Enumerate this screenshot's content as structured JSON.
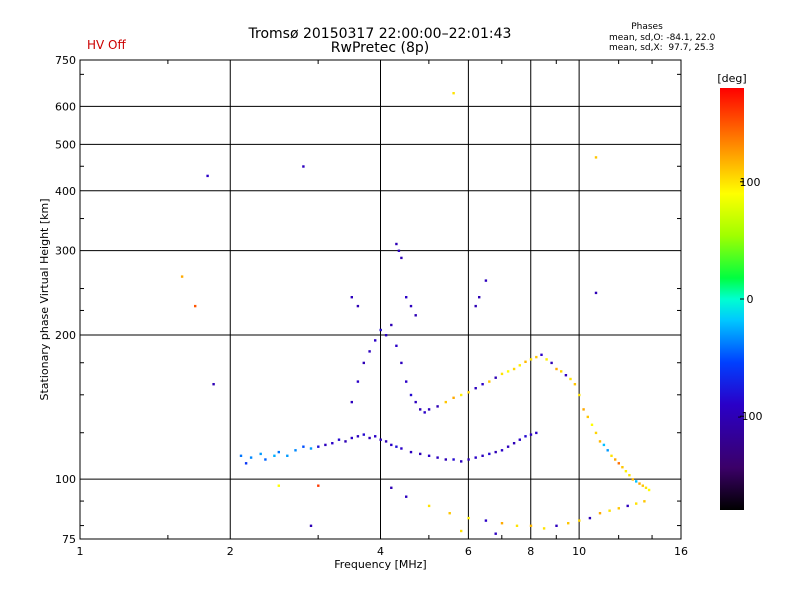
{
  "header": {
    "title": "Tromsø 20150317 22:00:00–22:01:43",
    "subtitle": "RwPretec (8p)",
    "hv_status": "HV Off",
    "phase_title": "Phases",
    "phase_o": "mean, sd,O: -84.1, 22.0",
    "phase_x": "mean, sd,X:  97.7, 25.3"
  },
  "colors": {
    "hv_status": "#cc0000",
    "grid": "#000000"
  },
  "chart_data": {
    "type": "scatter",
    "title": "Tromsø 20150317 22:00:00–22:01:43",
    "subtitle": "RwPretec (8p)",
    "xlabel": "Frequency [MHz]",
    "ylabel": "Stationary phase Virtual Height [km]",
    "xscale": "log",
    "yscale": "log",
    "xlim": [
      1,
      16
    ],
    "ylim": [
      75,
      750
    ],
    "xticks": [
      1,
      2,
      4,
      6,
      8,
      10,
      16
    ],
    "yticks": [
      75,
      100,
      200,
      300,
      400,
      500,
      600,
      750
    ],
    "grid": true,
    "colorbar": {
      "label": "[deg]",
      "range": [
        -180,
        180
      ],
      "ticks": [
        100,
        0,
        -100
      ]
    },
    "series": [
      {
        "description": "low-frequency lower trace",
        "points": [
          [
            2.1,
            112,
            -40
          ],
          [
            2.15,
            108,
            -60
          ],
          [
            2.2,
            111,
            -35
          ],
          [
            2.3,
            113,
            -30
          ],
          [
            2.35,
            110,
            -45
          ],
          [
            2.45,
            112,
            -25
          ],
          [
            2.5,
            114,
            -40
          ],
          [
            2.6,
            112,
            -30
          ],
          [
            2.7,
            115,
            -35
          ],
          [
            2.8,
            117,
            -50
          ],
          [
            2.9,
            116,
            -30
          ],
          [
            3.0,
            117,
            -80
          ],
          [
            3.1,
            118,
            -95
          ],
          [
            3.2,
            119,
            -90
          ],
          [
            3.3,
            121,
            -85
          ],
          [
            3.4,
            120,
            -100
          ],
          [
            3.5,
            122,
            -90
          ],
          [
            3.6,
            123,
            -95
          ],
          [
            3.7,
            124,
            -85
          ],
          [
            3.8,
            122,
            -100
          ],
          [
            3.9,
            123,
            -90
          ],
          [
            4.0,
            121,
            -95
          ],
          [
            4.1,
            120,
            -100
          ],
          [
            4.2,
            118,
            -90
          ],
          [
            4.3,
            117,
            -80
          ]
        ]
      },
      {
        "description": "mid-frequency trace",
        "points": [
          [
            4.4,
            116,
            -90
          ],
          [
            4.6,
            114,
            -95
          ],
          [
            4.8,
            113,
            -100
          ],
          [
            5.0,
            112,
            -90
          ],
          [
            5.2,
            111,
            -95
          ],
          [
            5.4,
            110,
            -100
          ],
          [
            5.6,
            110,
            -85
          ],
          [
            5.8,
            109,
            -95
          ],
          [
            6.0,
            110,
            -100
          ],
          [
            6.2,
            111,
            -90
          ],
          [
            6.4,
            112,
            -95
          ],
          [
            6.6,
            113,
            -85
          ],
          [
            6.8,
            114,
            -100
          ],
          [
            7.0,
            115,
            -90
          ],
          [
            7.2,
            117,
            -95
          ],
          [
            7.4,
            119,
            -100
          ],
          [
            7.6,
            121,
            -90
          ],
          [
            7.8,
            123,
            -85
          ],
          [
            8.0,
            124,
            -95
          ],
          [
            8.2,
            125,
            -90
          ]
        ]
      },
      {
        "description": "oblique/spread echoes",
        "points": [
          [
            3.5,
            145,
            -95
          ],
          [
            3.6,
            160,
            -90
          ],
          [
            3.7,
            175,
            -100
          ],
          [
            3.8,
            185,
            -95
          ],
          [
            3.9,
            195,
            -90
          ],
          [
            4.0,
            205,
            -85
          ],
          [
            4.1,
            200,
            -95
          ],
          [
            4.2,
            210,
            -100
          ],
          [
            4.3,
            190,
            -90
          ],
          [
            4.4,
            175,
            -95
          ],
          [
            4.5,
            160,
            -90
          ],
          [
            4.6,
            150,
            -85
          ],
          [
            4.7,
            145,
            -95
          ],
          [
            4.8,
            140,
            -100
          ],
          [
            4.9,
            138,
            -90
          ],
          [
            5.0,
            140,
            -95
          ],
          [
            5.2,
            142,
            -100
          ],
          [
            5.4,
            145,
            110
          ],
          [
            5.6,
            148,
            120
          ],
          [
            5.8,
            150,
            95
          ],
          [
            6.0,
            152,
            105
          ],
          [
            6.2,
            155,
            -95
          ],
          [
            6.4,
            158,
            -90
          ],
          [
            6.6,
            160,
            110
          ],
          [
            6.8,
            163,
            -100
          ],
          [
            7.0,
            166,
            100
          ],
          [
            7.2,
            168,
            90
          ],
          [
            7.4,
            170,
            105
          ],
          [
            7.6,
            173,
            95
          ],
          [
            7.8,
            176,
            115
          ],
          [
            8.0,
            178,
            100
          ],
          [
            8.2,
            180,
            110
          ],
          [
            8.4,
            182,
            -90
          ],
          [
            8.6,
            178,
            95
          ],
          [
            8.8,
            175,
            -100
          ],
          [
            9.0,
            170,
            120
          ],
          [
            9.2,
            168,
            105
          ],
          [
            9.4,
            165,
            -95
          ],
          [
            9.6,
            162,
            100
          ],
          [
            9.8,
            158,
            110
          ]
        ]
      },
      {
        "description": "upper cusp echoes",
        "points": [
          [
            4.3,
            310,
            -100
          ],
          [
            4.35,
            300,
            -95
          ],
          [
            4.4,
            290,
            -100
          ],
          [
            4.5,
            240,
            -90
          ],
          [
            4.6,
            230,
            -95
          ],
          [
            4.7,
            220,
            -100
          ],
          [
            3.5,
            240,
            -95
          ],
          [
            3.6,
            230,
            -100
          ],
          [
            6.2,
            230,
            -100
          ],
          [
            6.5,
            260,
            -95
          ],
          [
            6.3,
            240,
            -100
          ],
          [
            5.6,
            640,
            100
          ],
          [
            10.8,
            470,
            110
          ],
          [
            10.8,
            245,
            -100
          ],
          [
            1.8,
            430,
            -90
          ],
          [
            2.8,
            450,
            -95
          ],
          [
            1.6,
            265,
            120
          ],
          [
            1.7,
            230,
            150
          ],
          [
            1.85,
            158,
            -100
          ]
        ]
      },
      {
        "description": "high-frequency spread",
        "points": [
          [
            10.0,
            150,
            100
          ],
          [
            10.2,
            140,
            120
          ],
          [
            10.4,
            135,
            110
          ],
          [
            10.6,
            130,
            90
          ],
          [
            10.8,
            125,
            105
          ],
          [
            11.0,
            120,
            115
          ],
          [
            11.2,
            118,
            -20
          ],
          [
            11.4,
            115,
            -30
          ],
          [
            11.6,
            112,
            100
          ],
          [
            11.8,
            110,
            120
          ],
          [
            12.0,
            108,
            140
          ],
          [
            12.2,
            106,
            110
          ],
          [
            12.4,
            104,
            95
          ],
          [
            12.6,
            102,
            100
          ],
          [
            12.8,
            100,
            115
          ],
          [
            13.0,
            99,
            -20
          ],
          [
            13.2,
            98,
            120
          ],
          [
            13.4,
            97,
            110
          ],
          [
            13.6,
            96,
            100
          ],
          [
            13.8,
            95,
            90
          ]
        ]
      },
      {
        "description": "lower scattered echoes",
        "points": [
          [
            4.2,
            96,
            -100
          ],
          [
            4.5,
            92,
            -95
          ],
          [
            5.0,
            88,
            100
          ],
          [
            5.5,
            85,
            110
          ],
          [
            6.0,
            83,
            95
          ],
          [
            6.5,
            82,
            -90
          ],
          [
            7.0,
            81,
            120
          ],
          [
            7.5,
            80,
            100
          ],
          [
            8.0,
            80,
            115
          ],
          [
            8.5,
            79,
            100
          ],
          [
            9.0,
            80,
            -95
          ],
          [
            9.5,
            81,
            110
          ],
          [
            10.0,
            82,
            105
          ],
          [
            10.5,
            83,
            -100
          ],
          [
            11.0,
            85,
            120
          ],
          [
            11.5,
            86,
            100
          ],
          [
            12.0,
            87,
            110
          ],
          [
            12.5,
            88,
            -95
          ],
          [
            13.0,
            89,
            100
          ],
          [
            13.5,
            90,
            110
          ],
          [
            5.8,
            78,
            100
          ],
          [
            6.8,
            77,
            -95
          ],
          [
            2.9,
            80,
            -100
          ],
          [
            3.0,
            97,
            160
          ],
          [
            2.5,
            97,
            90
          ]
        ]
      }
    ]
  }
}
